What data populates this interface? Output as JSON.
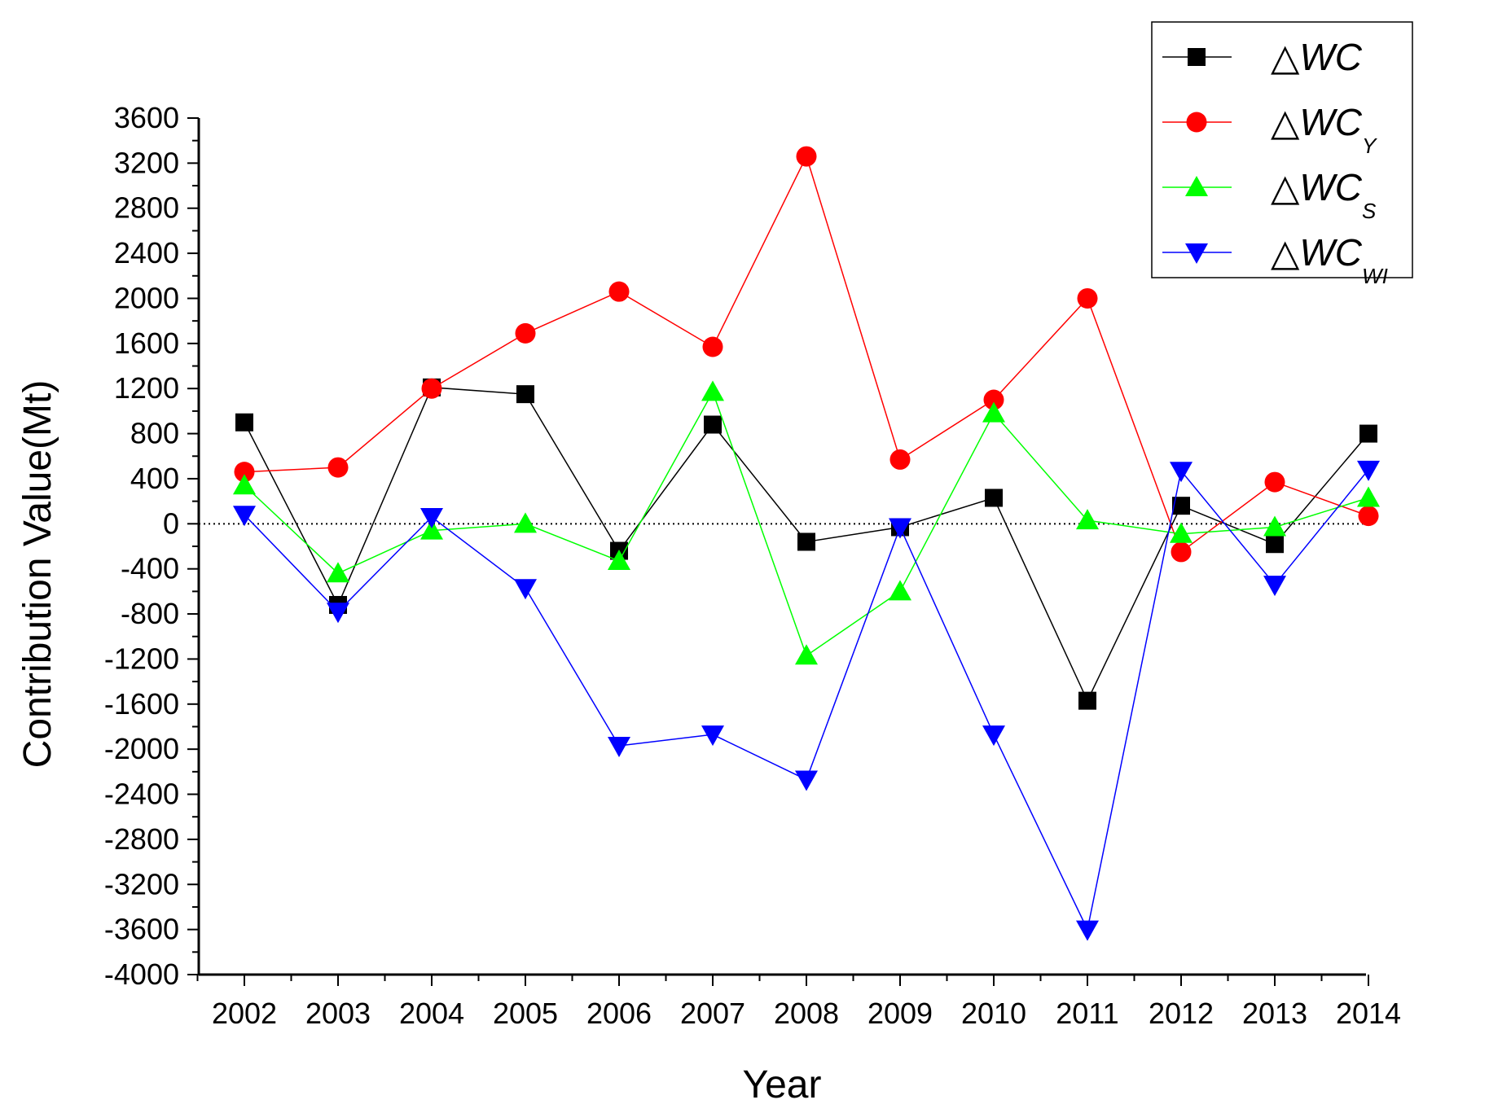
{
  "chart_data": {
    "type": "line",
    "title": "",
    "xlabel": "Year",
    "ylabel": "Contribution Value(Mt)",
    "categories": [
      "2002",
      "2003",
      "2004",
      "2005",
      "2006",
      "2007",
      "2008",
      "2009",
      "2010",
      "2011",
      "2012",
      "2013",
      "2014"
    ],
    "ylim": [
      -4000,
      3600
    ],
    "yticks": [
      3600,
      3200,
      2800,
      2400,
      2000,
      1600,
      1200,
      800,
      400,
      0,
      -400,
      -800,
      -1200,
      -1600,
      -2000,
      -2400,
      -2800,
      -3200,
      -3600,
      -4000
    ],
    "zero_line": true,
    "legend_position": "top-right",
    "series": [
      {
        "name": "ΔWC",
        "delta": "△",
        "base": "WC",
        "sub": "",
        "color": "#000000",
        "marker": "square",
        "values": [
          900,
          -720,
          1210,
          1150,
          -240,
          880,
          -160,
          -30,
          230,
          -1570,
          160,
          -180,
          800
        ]
      },
      {
        "name": "ΔWC_Y",
        "delta": "△",
        "base": "WC",
        "sub": "Y",
        "color": "#ff0000",
        "marker": "circle",
        "values": [
          460,
          500,
          1200,
          1690,
          2060,
          1570,
          3260,
          570,
          1100,
          2000,
          -250,
          370,
          70
        ]
      },
      {
        "name": "ΔWC_S",
        "delta": "△",
        "base": "WC",
        "sub": "S",
        "color": "#00ff00",
        "marker": "triangle-up",
        "values": [
          340,
          -440,
          -60,
          0,
          -330,
          1170,
          -1170,
          -600,
          980,
          30,
          -90,
          -30,
          230
        ]
      },
      {
        "name": "ΔWC_WI",
        "delta": "△",
        "base": "WC",
        "sub": "WI",
        "color": "#0000ff",
        "marker": "triangle-down",
        "values": [
          80,
          -780,
          60,
          -570,
          -1970,
          -1870,
          -2270,
          -30,
          -1870,
          -3600,
          470,
          -540,
          480
        ]
      }
    ]
  }
}
